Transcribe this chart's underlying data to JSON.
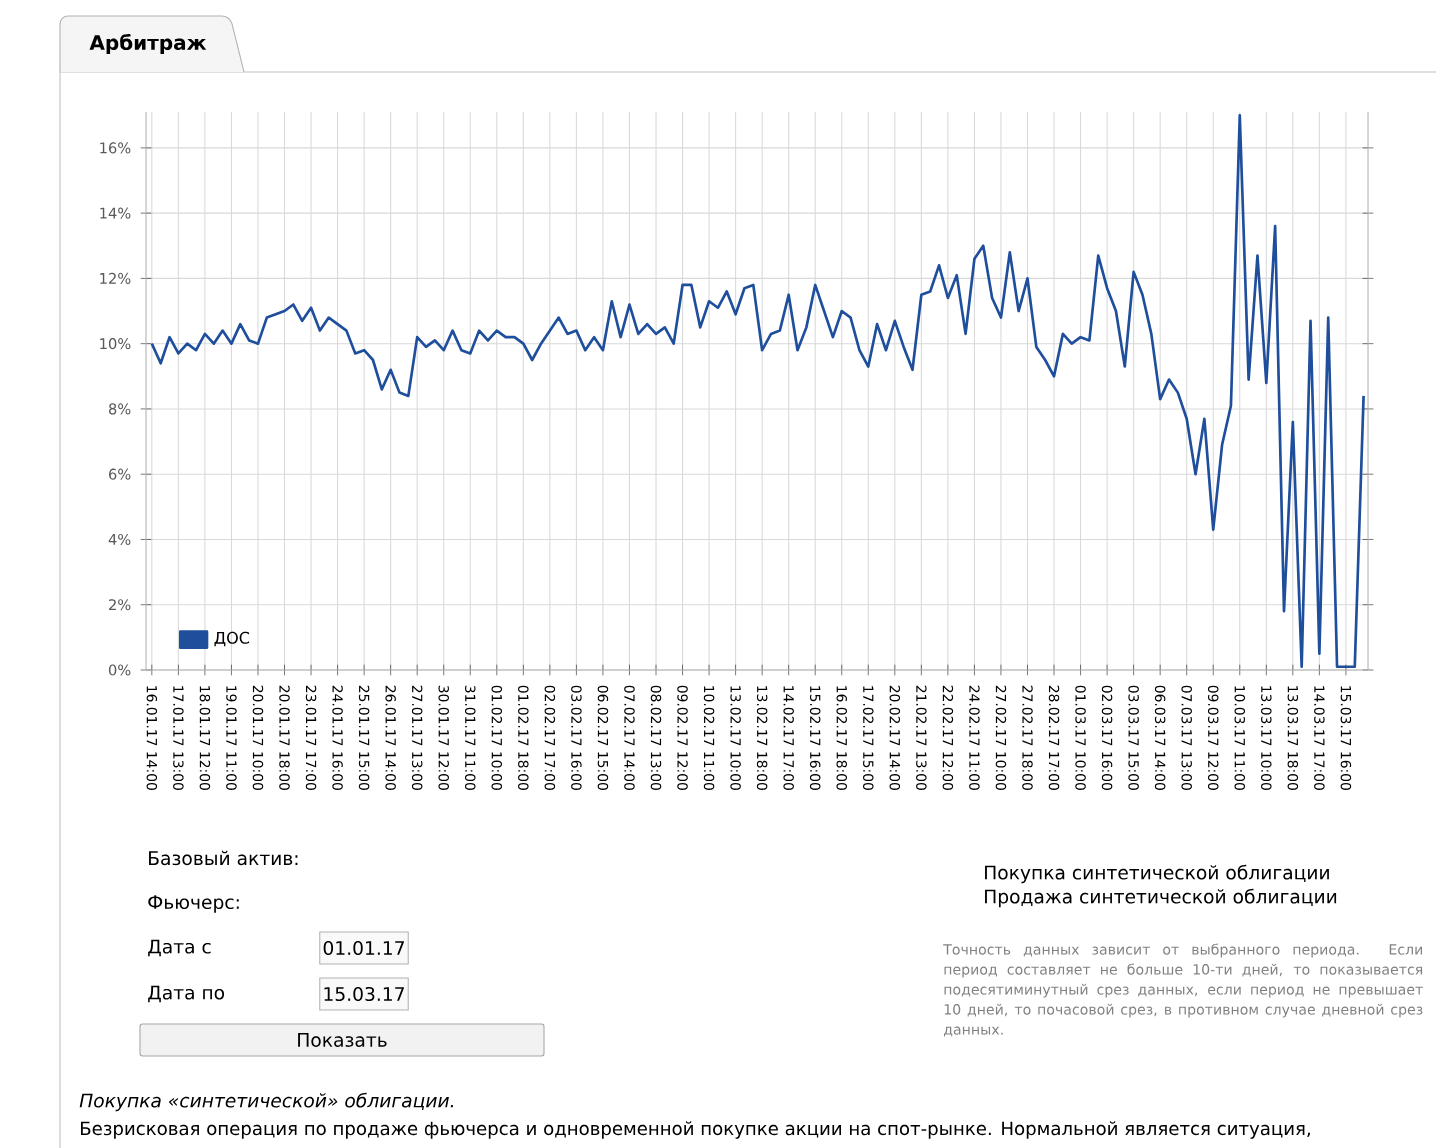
{
  "chart_data": {
    "type": "line",
    "title": "Арбитраж",
    "categories": [
      "16.01.17 14:00",
      null,
      null,
      "17.01.17 13:00",
      null,
      null,
      "18.01.17 12:00",
      null,
      null,
      "19.01.17 11:00",
      null,
      null,
      "20.01.17 10:00",
      null,
      null,
      "20.01.17 18:00",
      null,
      null,
      "23.01.17 17:00",
      null,
      null,
      "24.01.17 16:00",
      null,
      null,
      "25.01.17 15:00",
      null,
      null,
      "26.01.17 14:00",
      null,
      null,
      "27.01.17 13:00",
      null,
      null,
      "30.01.17 12:00",
      null,
      null,
      "31.01.17 11:00",
      null,
      null,
      "01.02.17 10:00",
      null,
      null,
      "01.02.17 18:00",
      null,
      null,
      "02.02.17 17:00",
      null,
      null,
      "03.02.17 16:00",
      null,
      null,
      "06.02.17 15:00",
      null,
      null,
      "07.02.17 14:00",
      null,
      null,
      "08.02.17 13:00",
      null,
      null,
      "09.02.17 12:00",
      null,
      null,
      "10.02.17 11:00",
      null,
      null,
      "13.02.17 10:00",
      null,
      null,
      "13.02.17 18:00",
      null,
      null,
      "14.02.17 17:00",
      null,
      null,
      "15.02.17 16:00",
      null,
      null,
      "16.02.17 18:00",
      null,
      null,
      "17.02.17 15:00",
      null,
      null,
      "20.02.17 14:00",
      null,
      null,
      "21.02.17 13:00",
      null,
      null,
      "22.02.17 12:00",
      null,
      null,
      "24.02.17 11:00",
      null,
      null,
      "27.02.17 10:00",
      null,
      null,
      "27.02.17 18:00",
      null,
      null,
      "28.02.17 17:00",
      null,
      null,
      "01.03.17 10:00",
      null,
      null,
      "02.03.17 16:00",
      null,
      null,
      "03.03.17 15:00",
      null,
      null,
      "06.03.17 14:00",
      null,
      null,
      "07.03.17 13:00",
      null,
      null,
      "09.03.17 12:00",
      null,
      null,
      "10.03.17 11:00",
      null,
      null,
      "13.03.17 10:00",
      null,
      null,
      "13.03.17 18:00",
      null,
      null,
      "14.03.17 17:00",
      null,
      null,
      "15.03.17 16:00",
      null,
      null
    ],
    "series": [
      {
        "name": "ДОС",
        "color": "#1f4e9c",
        "values": [
          10.0,
          9.4,
          10.2,
          9.7,
          10.0,
          9.8,
          10.3,
          10.0,
          10.4,
          10.0,
          10.6,
          10.1,
          10.0,
          10.8,
          10.9,
          11.0,
          11.2,
          10.7,
          11.1,
          10.4,
          10.8,
          10.6,
          10.4,
          9.7,
          9.8,
          9.5,
          8.6,
          9.2,
          8.5,
          8.4,
          10.2,
          9.9,
          10.1,
          9.8,
          10.4,
          9.8,
          9.7,
          10.4,
          10.1,
          10.4,
          10.2,
          10.2,
          10.0,
          9.5,
          10.0,
          10.4,
          10.8,
          10.3,
          10.4,
          9.8,
          10.2,
          9.8,
          11.3,
          10.2,
          11.2,
          10.3,
          10.6,
          10.3,
          10.5,
          10.0,
          11.8,
          11.8,
          10.5,
          11.3,
          11.1,
          11.6,
          10.9,
          11.7,
          11.8,
          9.8,
          10.3,
          10.4,
          11.5,
          9.8,
          10.5,
          11.8,
          11.0,
          10.2,
          11.0,
          10.8,
          9.8,
          9.3,
          10.6,
          9.8,
          10.7,
          9.9,
          9.2,
          11.5,
          11.6,
          12.4,
          11.4,
          12.1,
          10.3,
          12.6,
          13.0,
          11.4,
          10.8,
          12.8,
          11.0,
          12.0,
          9.9,
          9.5,
          9.0,
          10.3,
          10.0,
          10.2,
          10.1,
          12.7,
          11.7,
          11.0,
          9.3,
          12.2,
          11.5,
          10.3,
          8.3,
          8.9,
          8.5,
          7.7,
          6.0,
          7.7,
          4.3,
          6.9,
          8.1,
          17.0,
          8.9,
          12.7,
          8.8,
          13.6,
          1.8,
          7.6,
          0.1,
          10.7,
          0.5,
          10.8,
          0.1,
          0.1,
          0.1,
          8.4
        ]
      }
    ],
    "ylim": [
      0,
      17.1
    ],
    "yticks": [
      {
        "value": 0,
        "label": "0%"
      },
      {
        "value": 2,
        "label": "2%"
      },
      {
        "value": 4,
        "label": "4%"
      },
      {
        "value": 6,
        "label": "6%"
      },
      {
        "value": 8,
        "label": "8%"
      },
      {
        "value": 10,
        "label": "10%"
      },
      {
        "value": 12,
        "label": "12%"
      },
      {
        "value": 14,
        "label": "14%"
      },
      {
        "value": 16,
        "label": "16%"
      }
    ],
    "grid": true,
    "legend": "bottom left",
    "marker": "none",
    "line_style": "solid",
    "annotations": [
      "Базовый актив:",
      "Фьючерс:",
      "Дата с",
      "01.01.17",
      "Дата по",
      "15.03.17",
      "Показать",
      "Покупка синтетической облигации",
      "Продажа синтетической облигации",
      "Точность данных зависит от выбранного периода. Если период составляет не больше 10-ти дней, то показывается подесятиминутный срез данных, если период не превышает 10 дней, то почасовой срез, в противном случае дневной срез данных.",
      "*Покупка «синтетической» облигации.*",
      "Безрисковая операция по продаже фьючерса и одновременной покупке акции на спот-рынке. Нормальной является ситуация,"
    ]
  }
}
